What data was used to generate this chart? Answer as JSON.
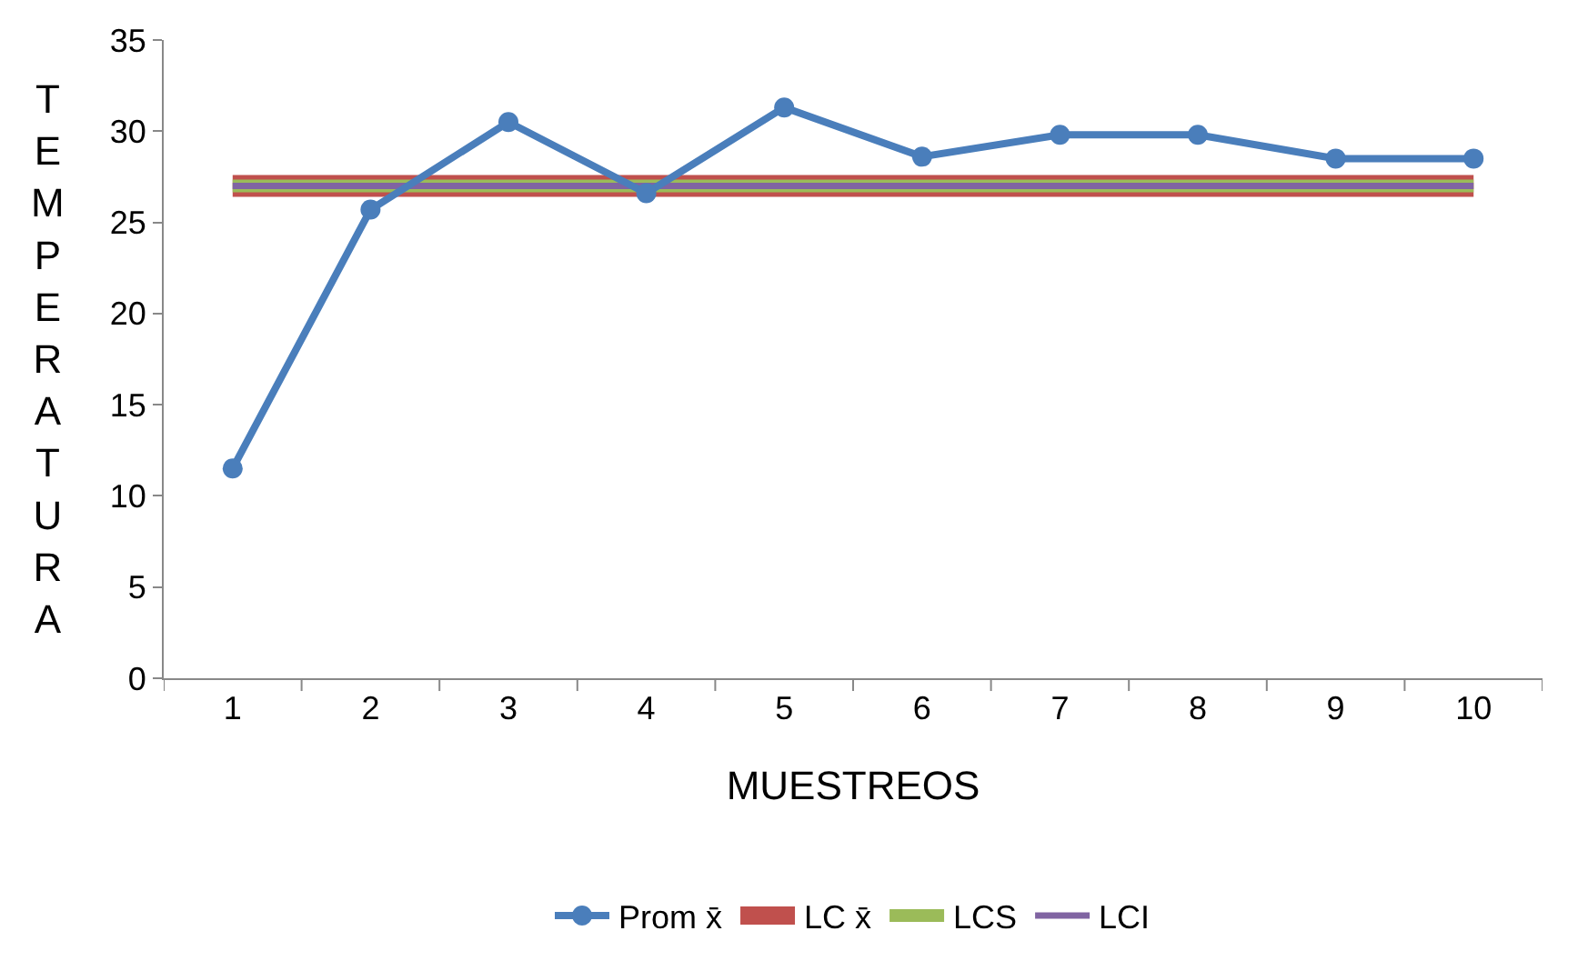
{
  "chart_data": {
    "type": "line",
    "xlabel": "MUESTREOS",
    "ylabel": "TEMPERATURA",
    "categories": [
      "1",
      "2",
      "3",
      "4",
      "5",
      "6",
      "7",
      "8",
      "9",
      "10"
    ],
    "series": [
      {
        "name": "Prom x̄",
        "color": "#4a7ebb",
        "marker": "circle",
        "values": [
          11.5,
          25.7,
          30.5,
          26.6,
          31.3,
          28.6,
          29.8,
          29.8,
          28.5,
          28.5
        ]
      },
      {
        "name": "LC x̄",
        "color": "#c0504d",
        "marker": "none",
        "values": [
          27,
          27,
          27,
          27,
          27,
          27,
          27,
          27,
          27,
          27
        ]
      },
      {
        "name": "LCS",
        "color": "#9bbb59",
        "marker": "none",
        "values": [
          27,
          27,
          27,
          27,
          27,
          27,
          27,
          27,
          27,
          27
        ]
      },
      {
        "name": "LCI",
        "color": "#8064a2",
        "marker": "none",
        "values": [
          27,
          27,
          27,
          27,
          27,
          27,
          27,
          27,
          27,
          27
        ]
      }
    ],
    "ylim": [
      0,
      35
    ],
    "yticks": [
      0,
      5,
      10,
      15,
      20,
      25,
      30,
      35
    ],
    "legend": "bottom"
  }
}
